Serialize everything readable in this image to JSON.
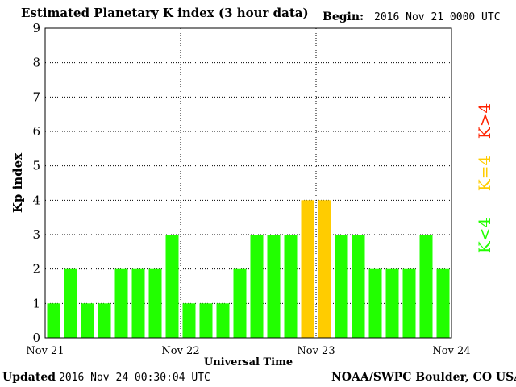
{
  "header": {
    "title": "Estimated Planetary K index (3 hour data)",
    "begin_label": "Begin:",
    "begin_value": "2016 Nov 21 0000 UTC"
  },
  "footer": {
    "updated_label": "Updated",
    "updated_value": "2016 Nov 24 00:30:04 UTC",
    "source": "NOAA/SWPC Boulder, CO USA"
  },
  "legend": {
    "high": "K>4",
    "equal": "K=4",
    "low": "K<4"
  },
  "colors": {
    "low": "#22ff00",
    "equal": "#ffcc00",
    "high": "#ff2200",
    "grid": "#000000"
  },
  "chart_data": {
    "type": "bar",
    "title": "Estimated Planetary K index (3 hour data)",
    "xlabel": "Universal Time",
    "ylabel": "Kp index",
    "ylim": [
      0,
      9
    ],
    "yticks": [
      "0",
      "1",
      "2",
      "3",
      "4",
      "5",
      "6",
      "7",
      "8",
      "9"
    ],
    "xticks": [
      "Nov 21",
      "Nov 22",
      "Nov 23",
      "Nov 24"
    ],
    "grid": true,
    "values": [
      1,
      2,
      1,
      1,
      2,
      2,
      2,
      3,
      1,
      1,
      1,
      2,
      3,
      3,
      3,
      4,
      4,
      3,
      3,
      2,
      2,
      2,
      3,
      2
    ]
  }
}
